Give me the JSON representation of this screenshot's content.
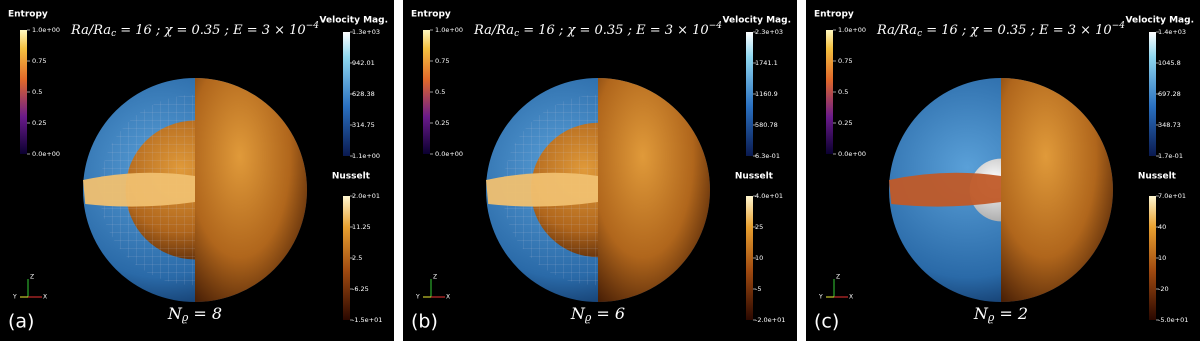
{
  "panels": [
    {
      "label": "(a)",
      "title": [
        "Ra/Ra",
        "c",
        " = 16 ; χ = 0.35 ; E = 3 × 10",
        "−4"
      ],
      "n_label": [
        "N",
        "ϱ",
        " = 8"
      ],
      "axes": [
        "Z",
        "Y",
        "X"
      ],
      "colorbars": [
        {
          "title": "Entropy",
          "ticks": [
            "1.0e+00",
            "0.75",
            "0.5",
            "0.25",
            "0.0e+00"
          ]
        },
        {
          "title": "Velocity Mag.",
          "ticks": [
            "1.3e+03",
            "942.01",
            "628.38",
            "314.75",
            "1.1e+00"
          ]
        },
        {
          "title": "Nusselt",
          "ticks": [
            "2.0e+01",
            "11.25",
            "2.5",
            "-6.25",
            "-1.5e+01"
          ]
        }
      ]
    },
    {
      "label": "(b)",
      "title": [
        "Ra/Ra",
        "c",
        " = 16 ; χ = 0.35 ; E = 3 × 10",
        "−4"
      ],
      "n_label": [
        "N",
        "ϱ",
        " = 6"
      ],
      "axes": [
        "Z",
        "Y",
        "X"
      ],
      "colorbars": [
        {
          "title": "Entropy",
          "ticks": [
            "1.0e+00",
            "0.75",
            "0.5",
            "0.25",
            "0.0e+00"
          ]
        },
        {
          "title": "Velocity Mag.",
          "ticks": [
            "2.3e+03",
            "1741.1",
            "1160.9",
            "580.78",
            "6.3e-01"
          ]
        },
        {
          "title": "Nusselt",
          "ticks": [
            "4.0e+01",
            "25",
            "10",
            "-5",
            "-2.0e+01"
          ]
        }
      ]
    },
    {
      "label": "(c)",
      "title": [
        "Ra/Ra",
        "c",
        " = 16 ; χ = 0.35 ; E = 3 × 10",
        "−4"
      ],
      "n_label": [
        "N",
        "ϱ",
        " = 2"
      ],
      "axes": [
        "Z",
        "Y",
        "X"
      ],
      "colorbars": [
        {
          "title": "Entropy",
          "ticks": [
            "1.0e+00",
            "0.75",
            "0.5",
            "0.25",
            "0.0e+00"
          ]
        },
        {
          "title": "Velocity Mag.",
          "ticks": [
            "1.4e+03",
            "1045.8",
            "697.28",
            "348.73",
            "1.7e-01"
          ]
        },
        {
          "title": "Nusselt",
          "ticks": [
            "7.0e+01",
            "40",
            "10",
            "-20",
            "-5.0e+01"
          ]
        }
      ]
    }
  ]
}
